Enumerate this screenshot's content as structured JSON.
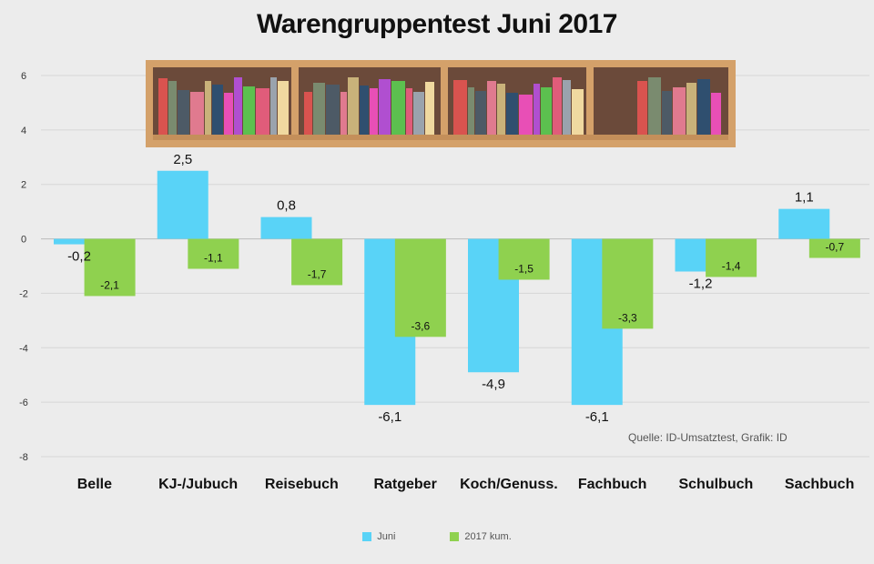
{
  "chart_data": {
    "type": "bar",
    "title": "Warengruppentest Juni 2017",
    "categories": [
      "Belle",
      "KJ-/Jubuch",
      "Reisebuch",
      "Ratgeber",
      "Koch/Genuss.",
      "Fachbuch",
      "Schulbuch",
      "Sachbuch"
    ],
    "series": [
      {
        "name": "Juni",
        "color": "#59d3f7",
        "values": [
          -0.2,
          2.5,
          0.8,
          -6.1,
          -4.9,
          -6.1,
          -1.2,
          1.1
        ],
        "labels": [
          "-0,2",
          "2,5",
          "0,8",
          "-6,1",
          "-4,9",
          "-6,1",
          "-1,2",
          "1,1"
        ]
      },
      {
        "name": "2017 kum.",
        "color": "#8fd14f",
        "values": [
          -2.1,
          -1.1,
          -1.7,
          -3.6,
          -1.5,
          -3.3,
          -1.4,
          -0.7
        ],
        "labels": [
          "-2,1",
          "-1,1",
          "-1,7",
          "-3,6",
          "-1,5",
          "-3,3",
          "-1,4",
          "-0,7"
        ]
      }
    ],
    "yticks": [
      6,
      4,
      2,
      0,
      -2,
      -4,
      -6,
      -8
    ],
    "ytick_labels": [
      "6",
      "4",
      "2",
      "0",
      "-2",
      "-4",
      "-6",
      "-8"
    ],
    "ylim": [
      -8,
      6
    ],
    "grid": true,
    "legend_position": "bottom"
  },
  "source_note": "Quelle: ID-Umsatztest, Grafik: ID"
}
